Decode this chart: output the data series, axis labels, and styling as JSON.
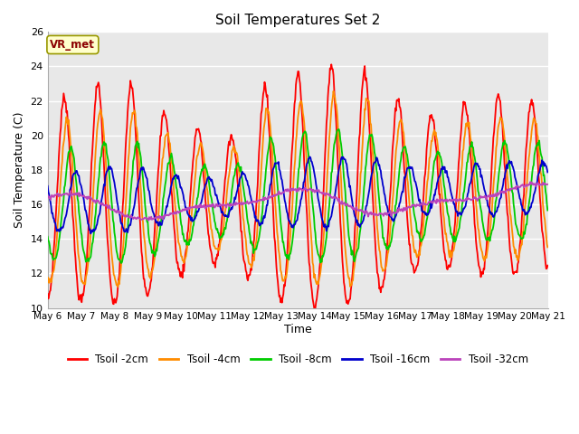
{
  "title": "Soil Temperatures Set 2",
  "xlabel": "Time",
  "ylabel": "Soil Temperature (C)",
  "ylim": [
    10,
    26
  ],
  "yticks": [
    10,
    12,
    14,
    16,
    18,
    20,
    22,
    24,
    26
  ],
  "background_color": "#e8e8e8",
  "annotation_text": "VR_met",
  "annotation_bg": "#ffffcc",
  "annotation_border": "#999900",
  "annotation_text_color": "#8b0000",
  "series_colors": [
    "#ff0000",
    "#ff8c00",
    "#00cc00",
    "#0000cc",
    "#bb44bb"
  ],
  "series_labels": [
    "Tsoil -2cm",
    "Tsoil -4cm",
    "Tsoil -8cm",
    "Tsoil -16cm",
    "Tsoil -32cm"
  ],
  "line_width": 1.3,
  "num_days": 15,
  "start_day": 6,
  "points_per_day": 48,
  "figsize": [
    6.4,
    4.8
  ],
  "dpi": 100
}
